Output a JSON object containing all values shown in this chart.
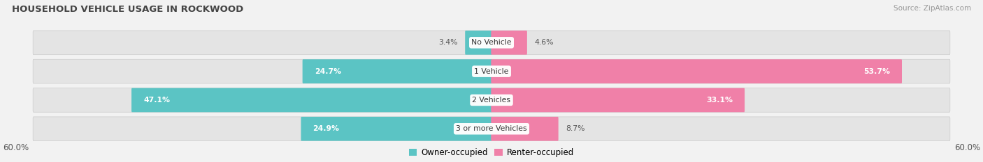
{
  "title": "HOUSEHOLD VEHICLE USAGE IN ROCKWOOD",
  "source": "Source: ZipAtlas.com",
  "categories": [
    "No Vehicle",
    "1 Vehicle",
    "2 Vehicles",
    "3 or more Vehicles"
  ],
  "owner_values": [
    3.4,
    24.7,
    47.1,
    24.9
  ],
  "renter_values": [
    4.6,
    53.7,
    33.1,
    8.7
  ],
  "max_val": 60.0,
  "owner_color": "#5bc4c4",
  "renter_color": "#f080a8",
  "bg_color": "#f2f2f2",
  "bar_bg_color": "#e4e4e4",
  "axis_label_left": "60.0%",
  "axis_label_right": "60.0%",
  "legend_owner": "Owner-occupied",
  "legend_renter": "Renter-occupied",
  "owner_label_color_inside": "#ffffff",
  "owner_label_color_outside": "#666666",
  "renter_label_color_inside": "#ffffff",
  "renter_label_color_outside": "#666666"
}
